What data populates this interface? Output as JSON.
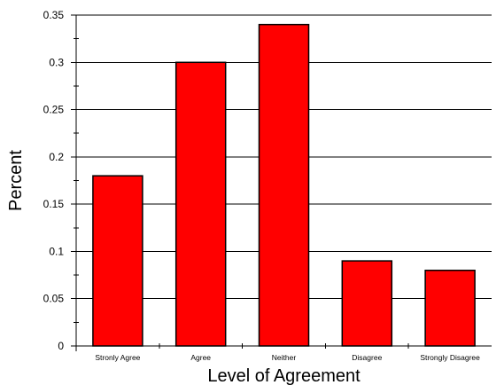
{
  "chart_data": {
    "type": "bar",
    "categories": [
      "Stronly Agree",
      "Agree",
      "Neither",
      "Disagree",
      "Strongly Disagree"
    ],
    "values": [
      0.18,
      0.3,
      0.34,
      0.09,
      0.08
    ],
    "xlabel": "Level of Agreement",
    "ylabel": "Percent",
    "ylim": [
      0,
      0.35
    ],
    "yticks": [
      0,
      0.05,
      0.1,
      0.15,
      0.2,
      0.25,
      0.3,
      0.35
    ],
    "ytick_labels": [
      "0",
      "0.05",
      "0.1",
      "0.15",
      "0.2",
      "0.25",
      "0.3",
      "0.35"
    ],
    "grid": "horizontal",
    "legend": "none",
    "bar_color": "#ff0000",
    "edge_color": "#000000"
  }
}
